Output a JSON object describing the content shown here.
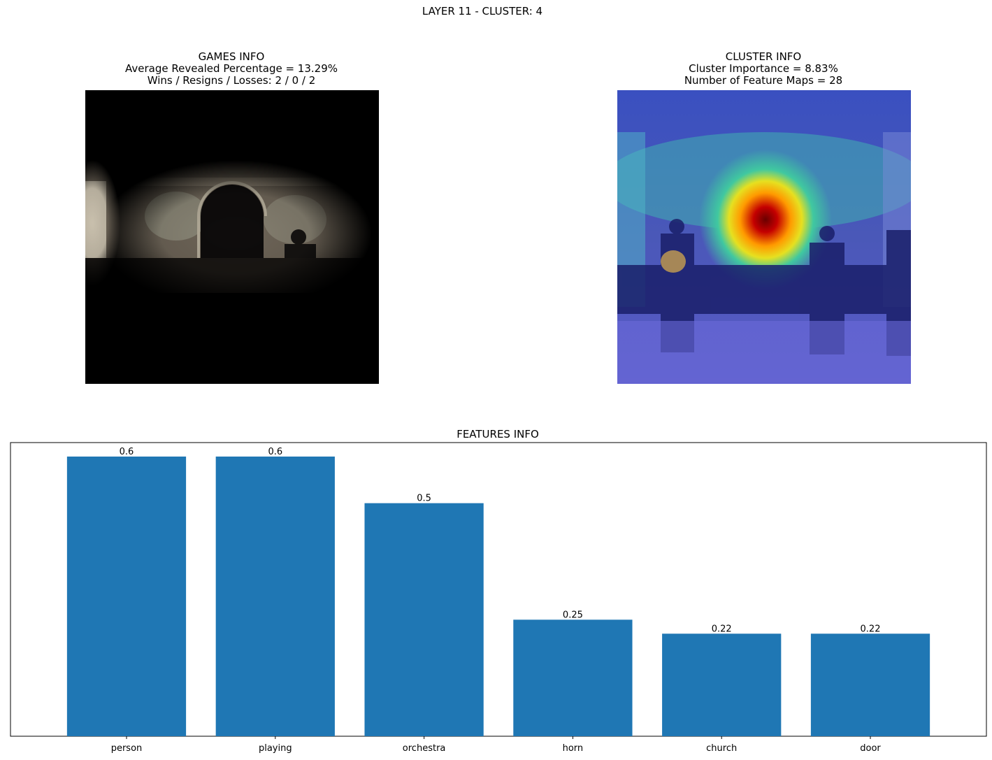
{
  "figure": {
    "suptitle": "LAYER 11 - CLUSTER: 4"
  },
  "games_info": {
    "title": "GAMES INFO",
    "line1": "Average Revealed Percentage = 13.29%",
    "line2": "Wins / Resigns / Losses: 2 / 0 / 2"
  },
  "cluster_info": {
    "title": "CLUSTER INFO",
    "line1": "Cluster Importance = 8.83%",
    "line2": "Number of Feature Maps = 28"
  },
  "colors": {
    "bar": "#1f77b4",
    "masked_bg": "#000000",
    "heatmap_low": "#3a3aa8",
    "heatmap_high": "#b00000"
  },
  "chart_data": {
    "type": "bar",
    "title": "FEATURES INFO",
    "categories": [
      "person",
      "playing",
      "orchestra",
      "horn",
      "church",
      "door"
    ],
    "values": [
      0.6,
      0.6,
      0.5,
      0.25,
      0.22,
      0.22
    ],
    "value_labels": [
      "0.6",
      "0.6",
      "0.5",
      "0.25",
      "0.22",
      "0.22"
    ],
    "xlabel": "",
    "ylabel": "",
    "ylim": [
      0,
      0.63
    ],
    "y_ticks_visible": false,
    "grid": false,
    "legend": "none"
  }
}
